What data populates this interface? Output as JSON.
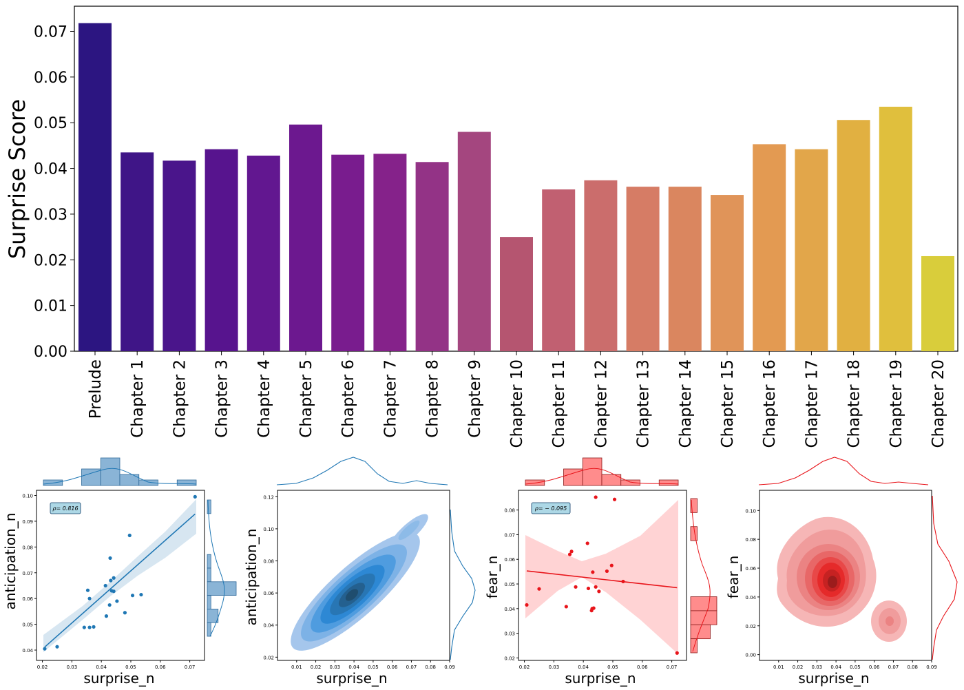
{
  "chart_data": [
    {
      "type": "bar",
      "ylabel": "Surprise Score",
      "xlabel": "",
      "ylim": [
        0,
        0.0755
      ],
      "yticks": [
        "0.00",
        "0.01",
        "0.02",
        "0.03",
        "0.04",
        "0.05",
        "0.06",
        "0.07"
      ],
      "categories": [
        "Prelude",
        "Chapter 1",
        "Chapter 2",
        "Chapter 3",
        "Chapter 4",
        "Chapter 5",
        "Chapter 6",
        "Chapter 7",
        "Chapter 8",
        "Chapter 9",
        "Chapter 10",
        "Chapter 11",
        "Chapter 12",
        "Chapter 13",
        "Chapter 14",
        "Chapter 15",
        "Chapter 16",
        "Chapter 17",
        "Chapter 18",
        "Chapter 19",
        "Chapter 20"
      ],
      "values": [
        0.0718,
        0.0435,
        0.0417,
        0.0442,
        0.0428,
        0.0496,
        0.043,
        0.0432,
        0.0414,
        0.048,
        0.025,
        0.0354,
        0.0374,
        0.036,
        0.036,
        0.0342,
        0.0453,
        0.0442,
        0.0506,
        0.0535,
        0.0208
      ],
      "palette": "plasma",
      "colors": [
        "#2c1581",
        "#3f1587",
        "#4a158b",
        "#57148e",
        "#621790",
        "#6c188f",
        "#791c8e",
        "#85228a",
        "#933386",
        "#a4467f",
        "#b55570",
        "#c16071",
        "#cb6d6c",
        "#d67c65",
        "#da865f",
        "#e09459",
        "#e39a52",
        "#e2a64a",
        "#e1b041",
        "#e0bf3d",
        "#d9cd3b"
      ]
    },
    {
      "type": "scatter",
      "subtype": "jointplot-regression",
      "xlabel": "surprise_n",
      "ylabel": "anticipation_n",
      "annotation": "ρ= 0.816",
      "xlim": [
        0.018,
        0.075
      ],
      "ylim": [
        0.036,
        0.102
      ],
      "xticks": [
        "0.02",
        "0.03",
        "0.04",
        "0.05",
        "0.06",
        "0.07"
      ],
      "yticks": [
        "0.04",
        "0.05",
        "0.06",
        "0.07",
        "0.08",
        "0.09",
        "0.10"
      ],
      "color": "#1f77b4",
      "x": [
        0.0208,
        0.025,
        0.0342,
        0.0354,
        0.036,
        0.036,
        0.0374,
        0.0414,
        0.0417,
        0.0428,
        0.043,
        0.0432,
        0.0435,
        0.0442,
        0.0442,
        0.0453,
        0.048,
        0.0496,
        0.0506,
        0.0535,
        0.0718
      ],
      "y": [
        0.0405,
        0.0413,
        0.0488,
        0.0632,
        0.06,
        0.0488,
        0.049,
        0.065,
        0.0532,
        0.0575,
        0.0757,
        0.067,
        0.063,
        0.0628,
        0.068,
        0.059,
        0.0545,
        0.0845,
        0.0612,
        0.0615,
        0.0995
      ],
      "regression": [
        [
          0.0208,
          0.0412
        ],
        [
          0.0718,
          0.0928
        ]
      ]
    },
    {
      "type": "heatmap",
      "subtype": "jointplot-kde",
      "xlabel": "surprise_n",
      "ylabel": "anticipation_n",
      "xlim": [
        0.0,
        0.09
      ],
      "ylim": [
        0.018,
        0.124
      ],
      "xticks": [
        "0.01",
        "0.02",
        "0.03",
        "0.04",
        "0.05",
        "0.06",
        "0.07",
        "0.08",
        "0.09"
      ],
      "yticks": [
        "0.02",
        "0.04",
        "0.06",
        "0.08",
        "0.10",
        "0.12"
      ],
      "color": "#1f77b4"
    },
    {
      "type": "scatter",
      "subtype": "jointplot-regression",
      "xlabel": "surprise_n",
      "ylabel": "fear_n",
      "annotation": "ρ= − 0.095",
      "xlim": [
        0.018,
        0.075
      ],
      "ylim": [
        0.019,
        0.088
      ],
      "xticks": [
        "0.02",
        "0.03",
        "0.04",
        "0.05",
        "0.06",
        "0.07"
      ],
      "yticks": [
        "0.02",
        "0.03",
        "0.04",
        "0.05",
        "0.06",
        "0.07",
        "0.08"
      ],
      "color": "#e8141a",
      "x": [
        0.0208,
        0.025,
        0.0342,
        0.0354,
        0.036,
        0.0374,
        0.0414,
        0.0417,
        0.0428,
        0.043,
        0.0432,
        0.0435,
        0.0442,
        0.0442,
        0.0453,
        0.048,
        0.0496,
        0.0506,
        0.0535,
        0.0718
      ],
      "y": [
        0.0415,
        0.048,
        0.0408,
        0.062,
        0.0632,
        0.0488,
        0.0665,
        0.0482,
        0.0392,
        0.04,
        0.0548,
        0.0402,
        0.0488,
        0.0852,
        0.047,
        0.0552,
        0.0575,
        0.0843,
        0.051,
        0.022
      ],
      "regression": [
        [
          0.0208,
          0.0553
        ],
        [
          0.0718,
          0.0485
        ]
      ]
    },
    {
      "type": "heatmap",
      "subtype": "jointplot-kde",
      "xlabel": "surprise_n",
      "ylabel": "fear_n",
      "xlim": [
        0.0,
        0.09
      ],
      "ylim": [
        -0.004,
        0.114
      ],
      "xticks": [
        "0.01",
        "0.02",
        "0.03",
        "0.04",
        "0.05",
        "0.06",
        "0.07",
        "0.08",
        "0.09"
      ],
      "yticks": [
        "0.00",
        "0.02",
        "0.04",
        "0.06",
        "0.08",
        "0.10"
      ],
      "color": "#e8141a"
    }
  ]
}
